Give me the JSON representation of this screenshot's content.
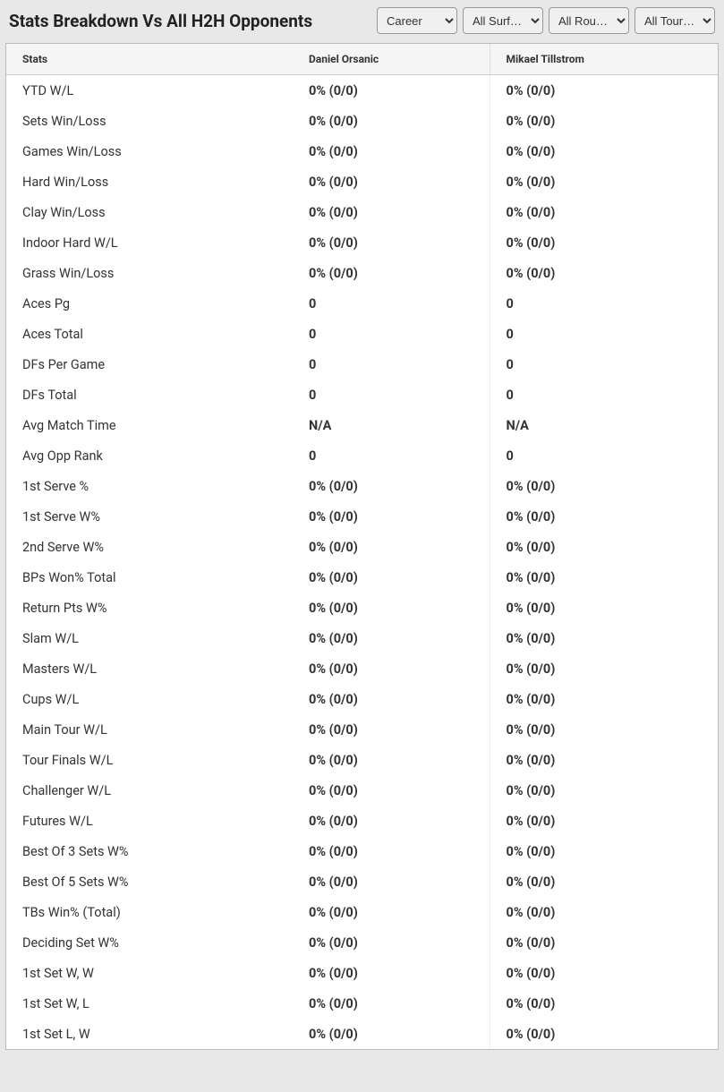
{
  "header": {
    "title": "Stats Breakdown Vs All H2H Opponents"
  },
  "filters": {
    "career": {
      "selected": "Career",
      "options": [
        "Career"
      ]
    },
    "surface": {
      "selected": "All Surf…",
      "options": [
        "All Surf…"
      ]
    },
    "round": {
      "selected": "All Rou…",
      "options": [
        "All Rou…"
      ]
    },
    "tournament": {
      "selected": "All Tour…",
      "options": [
        "All Tour…"
      ]
    }
  },
  "table": {
    "columns": [
      "Stats",
      "Daniel Orsanic",
      "Mikael Tillstrom"
    ],
    "rows": [
      [
        "YTD W/L",
        "0% (0/0)",
        "0% (0/0)"
      ],
      [
        "Sets Win/Loss",
        "0% (0/0)",
        "0% (0/0)"
      ],
      [
        "Games Win/Loss",
        "0% (0/0)",
        "0% (0/0)"
      ],
      [
        "Hard Win/Loss",
        "0% (0/0)",
        "0% (0/0)"
      ],
      [
        "Clay Win/Loss",
        "0% (0/0)",
        "0% (0/0)"
      ],
      [
        "Indoor Hard W/L",
        "0% (0/0)",
        "0% (0/0)"
      ],
      [
        "Grass Win/Loss",
        "0% (0/0)",
        "0% (0/0)"
      ],
      [
        "Aces Pg",
        "0",
        "0"
      ],
      [
        "Aces Total",
        "0",
        "0"
      ],
      [
        "DFs Per Game",
        "0",
        "0"
      ],
      [
        "DFs Total",
        "0",
        "0"
      ],
      [
        "Avg Match Time",
        "N/A",
        "N/A"
      ],
      [
        "Avg Opp Rank",
        "0",
        "0"
      ],
      [
        "1st Serve %",
        "0% (0/0)",
        "0% (0/0)"
      ],
      [
        "1st Serve W%",
        "0% (0/0)",
        "0% (0/0)"
      ],
      [
        "2nd Serve W%",
        "0% (0/0)",
        "0% (0/0)"
      ],
      [
        "BPs Won% Total",
        "0% (0/0)",
        "0% (0/0)"
      ],
      [
        "Return Pts W%",
        "0% (0/0)",
        "0% (0/0)"
      ],
      [
        "Slam W/L",
        "0% (0/0)",
        "0% (0/0)"
      ],
      [
        "Masters W/L",
        "0% (0/0)",
        "0% (0/0)"
      ],
      [
        "Cups W/L",
        "0% (0/0)",
        "0% (0/0)"
      ],
      [
        "Main Tour W/L",
        "0% (0/0)",
        "0% (0/0)"
      ],
      [
        "Tour Finals W/L",
        "0% (0/0)",
        "0% (0/0)"
      ],
      [
        "Challenger W/L",
        "0% (0/0)",
        "0% (0/0)"
      ],
      [
        "Futures W/L",
        "0% (0/0)",
        "0% (0/0)"
      ],
      [
        "Best Of 3 Sets W%",
        "0% (0/0)",
        "0% (0/0)"
      ],
      [
        "Best Of 5 Sets W%",
        "0% (0/0)",
        "0% (0/0)"
      ],
      [
        "TBs Win% (Total)",
        "0% (0/0)",
        "0% (0/0)"
      ],
      [
        "Deciding Set W%",
        "0% (0/0)",
        "0% (0/0)"
      ],
      [
        "1st Set W, W",
        "0% (0/0)",
        "0% (0/0)"
      ],
      [
        "1st Set W, L",
        "0% (0/0)",
        "0% (0/0)"
      ],
      [
        "1st Set L, W",
        "0% (0/0)",
        "0% (0/0)"
      ]
    ]
  },
  "styling": {
    "background_color": "#e8e8e8",
    "table_bg": "#ffffff",
    "header_bg": "#f5f5f5",
    "border_color": "#bbbbbb",
    "text_color": "#333333",
    "title_fontsize": 19,
    "header_fontsize": 12,
    "cell_fontsize": 14.5
  }
}
